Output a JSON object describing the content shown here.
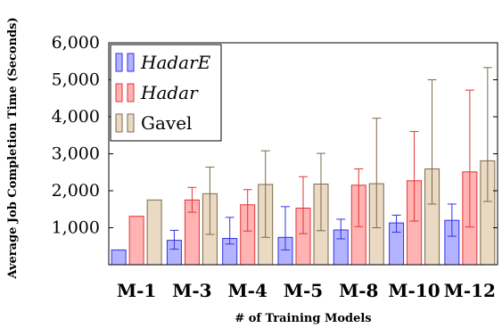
{
  "chart_data": {
    "type": "bar",
    "title": "",
    "xlabel": "# of Training Models",
    "ylabel": "Average Job Completion Time (Seconds)",
    "ylim": [
      0,
      6000
    ],
    "yticks": [
      1000,
      2000,
      3000,
      4000,
      5000,
      6000
    ],
    "ytick_labels": [
      "1,000",
      "2,000",
      "3,000",
      "4,000",
      "5,000",
      "6,000"
    ],
    "categories": [
      "M-1",
      "M-3",
      "M-4",
      "M-5",
      "M-8",
      "M-10",
      "M-12"
    ],
    "legend_position": "top-left",
    "grid": false,
    "series": [
      {
        "name": "HadarE",
        "italic": true,
        "fill": "#b3b3ff",
        "stroke": "#3333e6",
        "values": [
          400,
          660,
          710,
          740,
          940,
          1130,
          1200
        ],
        "err_low": [
          null,
          420,
          560,
          400,
          700,
          880,
          770
        ],
        "err_high": [
          null,
          930,
          1280,
          1570,
          1230,
          1340,
          1640
        ]
      },
      {
        "name": "Hadar",
        "italic": true,
        "fill": "#ffb3b3",
        "stroke": "#e63333",
        "values": [
          1310,
          1750,
          1620,
          1530,
          2150,
          2270,
          2510
        ],
        "err_low": [
          null,
          1420,
          910,
          840,
          1030,
          1180,
          1020
        ],
        "err_high": [
          null,
          2090,
          2030,
          2380,
          2590,
          3600,
          4720
        ]
      },
      {
        "name": "Gavel",
        "italic": false,
        "fill": "#ead9c3",
        "stroke": "#7a6a4c",
        "values": [
          1750,
          1920,
          2170,
          2180,
          2190,
          2590,
          2810
        ],
        "err_low": [
          null,
          820,
          740,
          920,
          1000,
          1640,
          1710
        ],
        "err_high": [
          null,
          2640,
          3080,
          3010,
          3960,
          5000,
          5330
        ]
      }
    ]
  }
}
